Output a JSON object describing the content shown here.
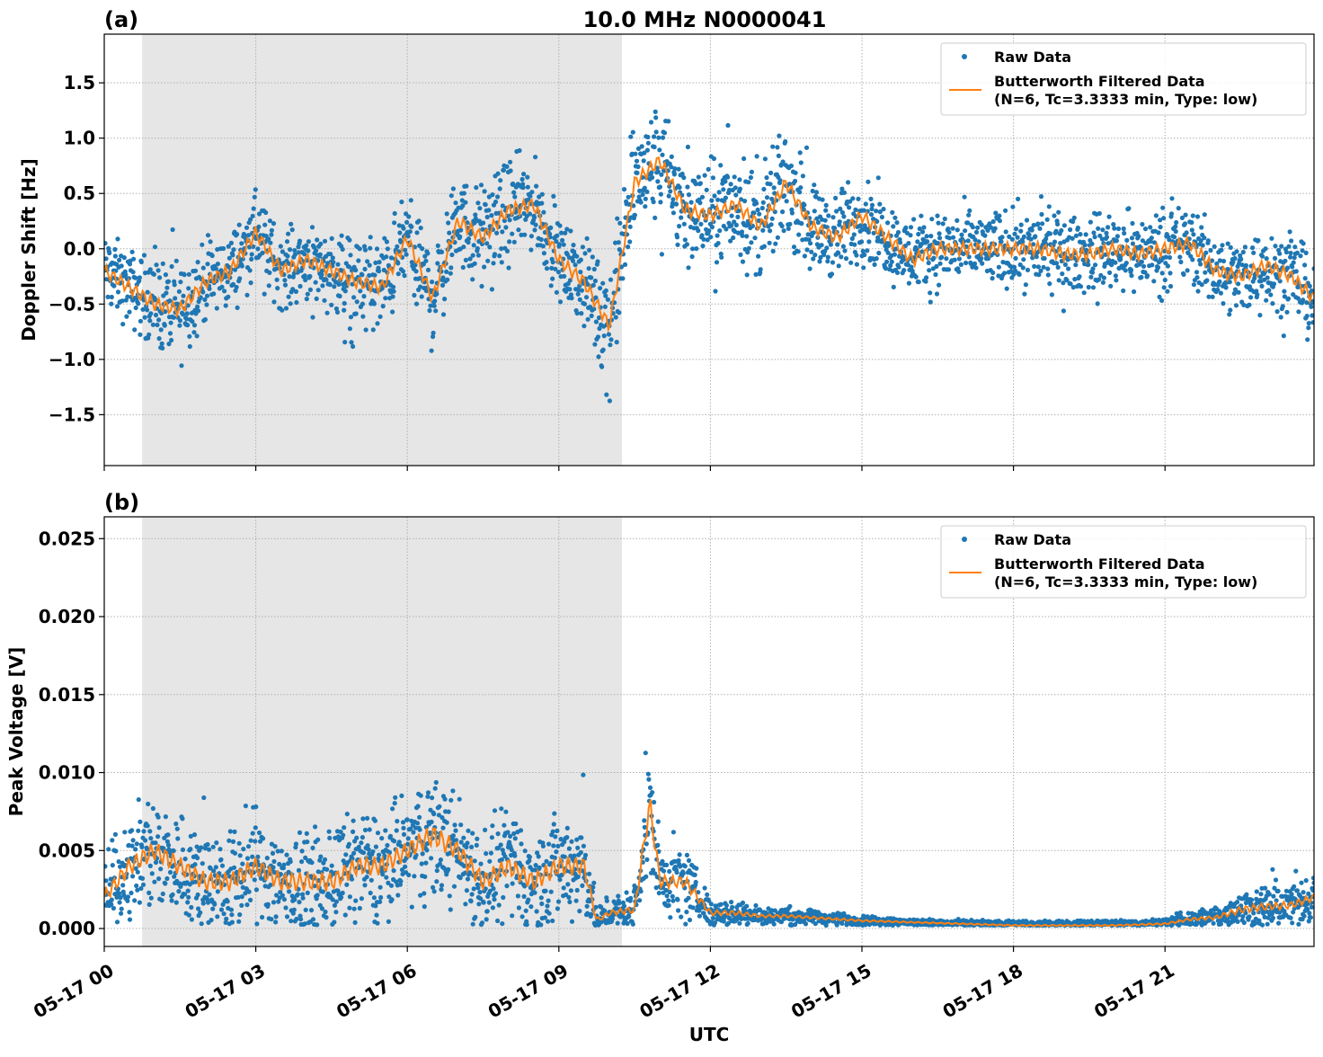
{
  "title": "10.0 MHz N0000041",
  "xlabel": "UTC",
  "x_tick_labels": [
    "05-17 00",
    "05-17 03",
    "05-17 06",
    "05-17 09",
    "05-17 12",
    "05-17 15",
    "05-17 18",
    "05-17 21"
  ],
  "x_ticks_hours": [
    0,
    3,
    6,
    9,
    12,
    15,
    18,
    21
  ],
  "xlim_hours": [
    0,
    23.95
  ],
  "shaded_region_hours": [
    0.75,
    10.25
  ],
  "colors": {
    "raw": "#1f77b4",
    "filtered": "#ff7f0e",
    "shade": "#e6e6e6",
    "grid": "#b0b0b0"
  },
  "legend": {
    "raw": "Raw Data",
    "filtered_line1": "Butterworth Filtered Data",
    "filtered_line2": "(N=6, Tc=3.3333 min, Type: low)",
    "placement": "top-right"
  },
  "chart_data": [
    {
      "type": "scatter+line",
      "panel_label": "(a)",
      "ylabel": "Doppler Shift [Hz]",
      "ylim": [
        -1.96,
        1.94
      ],
      "y_ticks": [
        -1.5,
        -1.0,
        -0.5,
        0.0,
        0.5,
        1.0,
        1.5
      ],
      "y_tick_labels": [
        "−1.5",
        "−1.0",
        "−0.5",
        "0.0",
        "0.5",
        "1.0",
        "1.5"
      ],
      "grid": true,
      "filtered": {
        "x": [
          0,
          0.5,
          1,
          1.5,
          2,
          2.5,
          3,
          3.5,
          4,
          4.5,
          5,
          5.5,
          6,
          6.5,
          7,
          7.5,
          8,
          8.5,
          9,
          9.5,
          10,
          10.5,
          11,
          11.5,
          12,
          12.5,
          13,
          13.5,
          14,
          14.5,
          15,
          15.5,
          16,
          16.5,
          17,
          17.5,
          18,
          18.5,
          19,
          19.5,
          20,
          20.5,
          21,
          21.5,
          22,
          22.5,
          23,
          23.5,
          23.95
        ],
        "y": [
          -0.2,
          -0.35,
          -0.5,
          -0.55,
          -0.3,
          -0.2,
          0.15,
          -0.2,
          -0.1,
          -0.2,
          -0.3,
          -0.35,
          0.1,
          -0.45,
          0.25,
          0.1,
          0.35,
          0.4,
          -0.1,
          -0.3,
          -0.7,
          0.6,
          0.8,
          0.35,
          0.3,
          0.4,
          0.2,
          0.6,
          0.2,
          0.1,
          0.3,
          0.1,
          -0.1,
          0.0,
          0.0,
          0.0,
          0.0,
          0.0,
          -0.05,
          -0.05,
          0.0,
          -0.05,
          0.0,
          0.05,
          -0.2,
          -0.25,
          -0.15,
          -0.25,
          -0.45
        ]
      },
      "raw_spread": [
        0.3,
        0.3,
        0.35,
        0.4,
        0.3,
        0.3,
        0.3,
        0.3,
        0.3,
        0.3,
        0.35,
        0.4,
        0.35,
        0.4,
        0.35,
        0.4,
        0.4,
        0.35,
        0.3,
        0.35,
        0.5,
        0.45,
        0.45,
        0.4,
        0.4,
        0.45,
        0.4,
        0.45,
        0.35,
        0.35,
        0.35,
        0.3,
        0.3,
        0.3,
        0.3,
        0.3,
        0.3,
        0.3,
        0.3,
        0.3,
        0.3,
        0.3,
        0.3,
        0.3,
        0.3,
        0.3,
        0.3,
        0.3,
        0.35
      ]
    },
    {
      "type": "scatter+line",
      "panel_label": "(b)",
      "ylabel": "Peak Voltage [V]",
      "ylim": [
        -0.00115,
        0.0264
      ],
      "y_ticks": [
        0,
        0.005,
        0.01,
        0.015,
        0.02,
        0.025
      ],
      "y_tick_labels": [
        "0.000",
        "0.005",
        "0.010",
        "0.015",
        "0.020",
        "0.025"
      ],
      "grid": true,
      "filtered": {
        "x": [
          0,
          0.5,
          1,
          1.5,
          2,
          2.5,
          3,
          3.5,
          4,
          4.5,
          5,
          5.5,
          6,
          6.5,
          7,
          7.5,
          8,
          8.5,
          9,
          9.5,
          9.75,
          10,
          10.5,
          10.8,
          11,
          11.5,
          12,
          12.5,
          13,
          13.5,
          14,
          15,
          16,
          17,
          18,
          19,
          20,
          21,
          21.5,
          22,
          22.5,
          23,
          23.5,
          23.95
        ],
        "y": [
          0.002,
          0.004,
          0.005,
          0.004,
          0.003,
          0.003,
          0.004,
          0.003,
          0.003,
          0.003,
          0.004,
          0.004,
          0.005,
          0.006,
          0.005,
          0.003,
          0.004,
          0.003,
          0.004,
          0.004,
          0.0005,
          0.001,
          0.0012,
          0.008,
          0.003,
          0.003,
          0.001,
          0.001,
          0.0008,
          0.0008,
          0.0007,
          0.0005,
          0.0004,
          0.0003,
          0.0002,
          0.0002,
          0.0002,
          0.0003,
          0.0006,
          0.0007,
          0.0012,
          0.0014,
          0.0015,
          0.002
        ]
      },
      "raw_spread": [
        0.002,
        0.003,
        0.003,
        0.003,
        0.003,
        0.003,
        0.003,
        0.003,
        0.003,
        0.003,
        0.003,
        0.003,
        0.003,
        0.0035,
        0.003,
        0.003,
        0.003,
        0.003,
        0.003,
        0.003,
        0.0008,
        0.0008,
        0.0012,
        0.004,
        0.002,
        0.002,
        0.0008,
        0.0008,
        0.0005,
        0.0005,
        0.0004,
        0.0003,
        0.0002,
        0.0002,
        0.0002,
        0.0002,
        0.0002,
        0.0003,
        0.0005,
        0.0006,
        0.0012,
        0.0012,
        0.0012,
        0.0012
      ]
    }
  ]
}
